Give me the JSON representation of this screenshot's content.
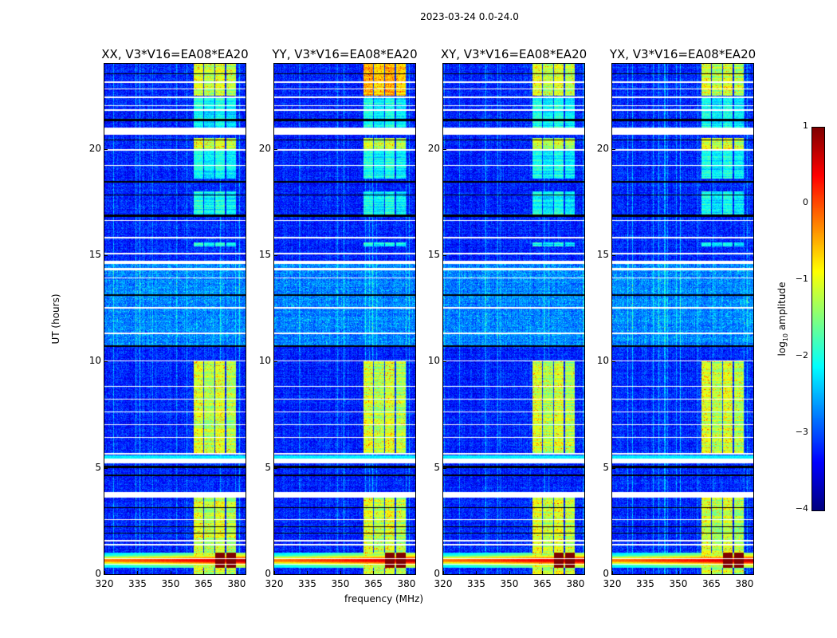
{
  "chart_data": {
    "type": "heatmap",
    "title": "2023-03-24 0.0-24.0",
    "xlabel": "frequency (MHz)",
    "ylabel": "UT (hours)",
    "xlim": [
      320,
      384
    ],
    "ylim": [
      0,
      24
    ],
    "xticks": [
      320,
      335,
      350,
      365,
      380
    ],
    "yticks": [
      0,
      5,
      10,
      15,
      20
    ],
    "panels": [
      {
        "title": "XX, V3*V16=EA08*EA20",
        "seed": 11
      },
      {
        "title": "YY, V3*V16=EA08*EA20",
        "seed": 23
      },
      {
        "title": "XY, V3*V16=EA08*EA20",
        "seed": 37
      },
      {
        "title": "YX, V3*V16=EA08*EA20",
        "seed": 51
      }
    ],
    "colorbar": {
      "label_prefix": "log",
      "label_sub": "10",
      "label_suffix": " amplitude",
      "range": [
        -4,
        1
      ],
      "ticks": [
        1,
        0,
        -1,
        -2,
        -3,
        -4
      ],
      "tick_labels": [
        "1",
        "0",
        "−1",
        "−2",
        "−3",
        "−4"
      ],
      "colormap": "jet"
    },
    "features": {
      "background_log_amp": -3.2,
      "rfi_channels_mhz": [
        [
          360.5,
          365
        ],
        [
          365,
          370
        ],
        [
          370,
          375
        ],
        [
          375,
          380
        ]
      ],
      "rfi_active_hours": [
        [
          0,
          3.6
        ],
        [
          5.7,
          10
        ],
        [
          15.4,
          15.6
        ],
        [
          16.9,
          18.0
        ],
        [
          18.6,
          19.9
        ],
        [
          20.0,
          20.5
        ],
        [
          21.0,
          22.4
        ],
        [
          22.5,
          24
        ]
      ],
      "broadband_rfi_hours": [
        0.3,
        1.0
      ],
      "high_noise_hours": [
        10.7,
        14.6
      ],
      "flagged_hours": [
        [
          0.45,
          0.5
        ],
        [
          0.7,
          0.75
        ],
        [
          1.35,
          1.42
        ],
        [
          1.55,
          1.6
        ],
        [
          2.55,
          2.6
        ],
        [
          3.6,
          3.85
        ],
        [
          5.22,
          5.45
        ],
        [
          5.62,
          5.7
        ],
        [
          6.4,
          6.45
        ],
        [
          7.0,
          7.05
        ],
        [
          7.6,
          7.65
        ],
        [
          8.2,
          8.25
        ],
        [
          8.8,
          8.85
        ],
        [
          10.0,
          10.05
        ],
        [
          11.3,
          11.35
        ],
        [
          12.5,
          12.55
        ],
        [
          13.9,
          13.95
        ],
        [
          14.3,
          14.4
        ],
        [
          14.6,
          14.75
        ],
        [
          15.05,
          15.12
        ],
        [
          15.8,
          15.86
        ],
        [
          16.6,
          16.66
        ],
        [
          19.2,
          19.25
        ],
        [
          19.9,
          20.0
        ],
        [
          20.65,
          21.0
        ],
        [
          21.8,
          21.85
        ],
        [
          22.0,
          22.05
        ],
        [
          22.4,
          22.46
        ],
        [
          22.8,
          22.85
        ],
        [
          23.1,
          23.16
        ]
      ],
      "dropout_hours": [
        [
          0.25,
          0.28
        ],
        [
          0.85,
          0.88
        ],
        [
          1.9,
          1.95
        ],
        [
          2.2,
          2.25
        ],
        [
          3.1,
          3.15
        ],
        [
          4.6,
          4.7
        ],
        [
          5.0,
          5.1
        ],
        [
          10.7,
          10.76
        ],
        [
          13.1,
          13.16
        ],
        [
          16.8,
          16.9
        ],
        [
          17.8,
          17.86
        ],
        [
          18.4,
          18.5
        ],
        [
          20.4,
          20.45
        ],
        [
          21.3,
          21.4
        ],
        [
          23.5,
          23.55
        ]
      ]
    }
  }
}
